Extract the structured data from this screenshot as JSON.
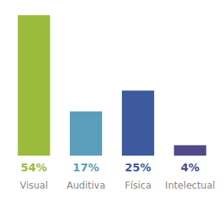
{
  "chart_data": {
    "type": "bar",
    "categories": [
      "Visual",
      "Auditiva",
      "Física",
      "Intelectual"
    ],
    "values": [
      54,
      17,
      25,
      4
    ],
    "value_labels": [
      "54%",
      "17%",
      "25%",
      "4%"
    ],
    "colors": [
      "#9bbb3c",
      "#5b9ebc",
      "#3d5a9e",
      "#4e4a8a"
    ],
    "ylim": [
      0,
      58
    ],
    "data_labels": true,
    "tick_labels": false
  }
}
